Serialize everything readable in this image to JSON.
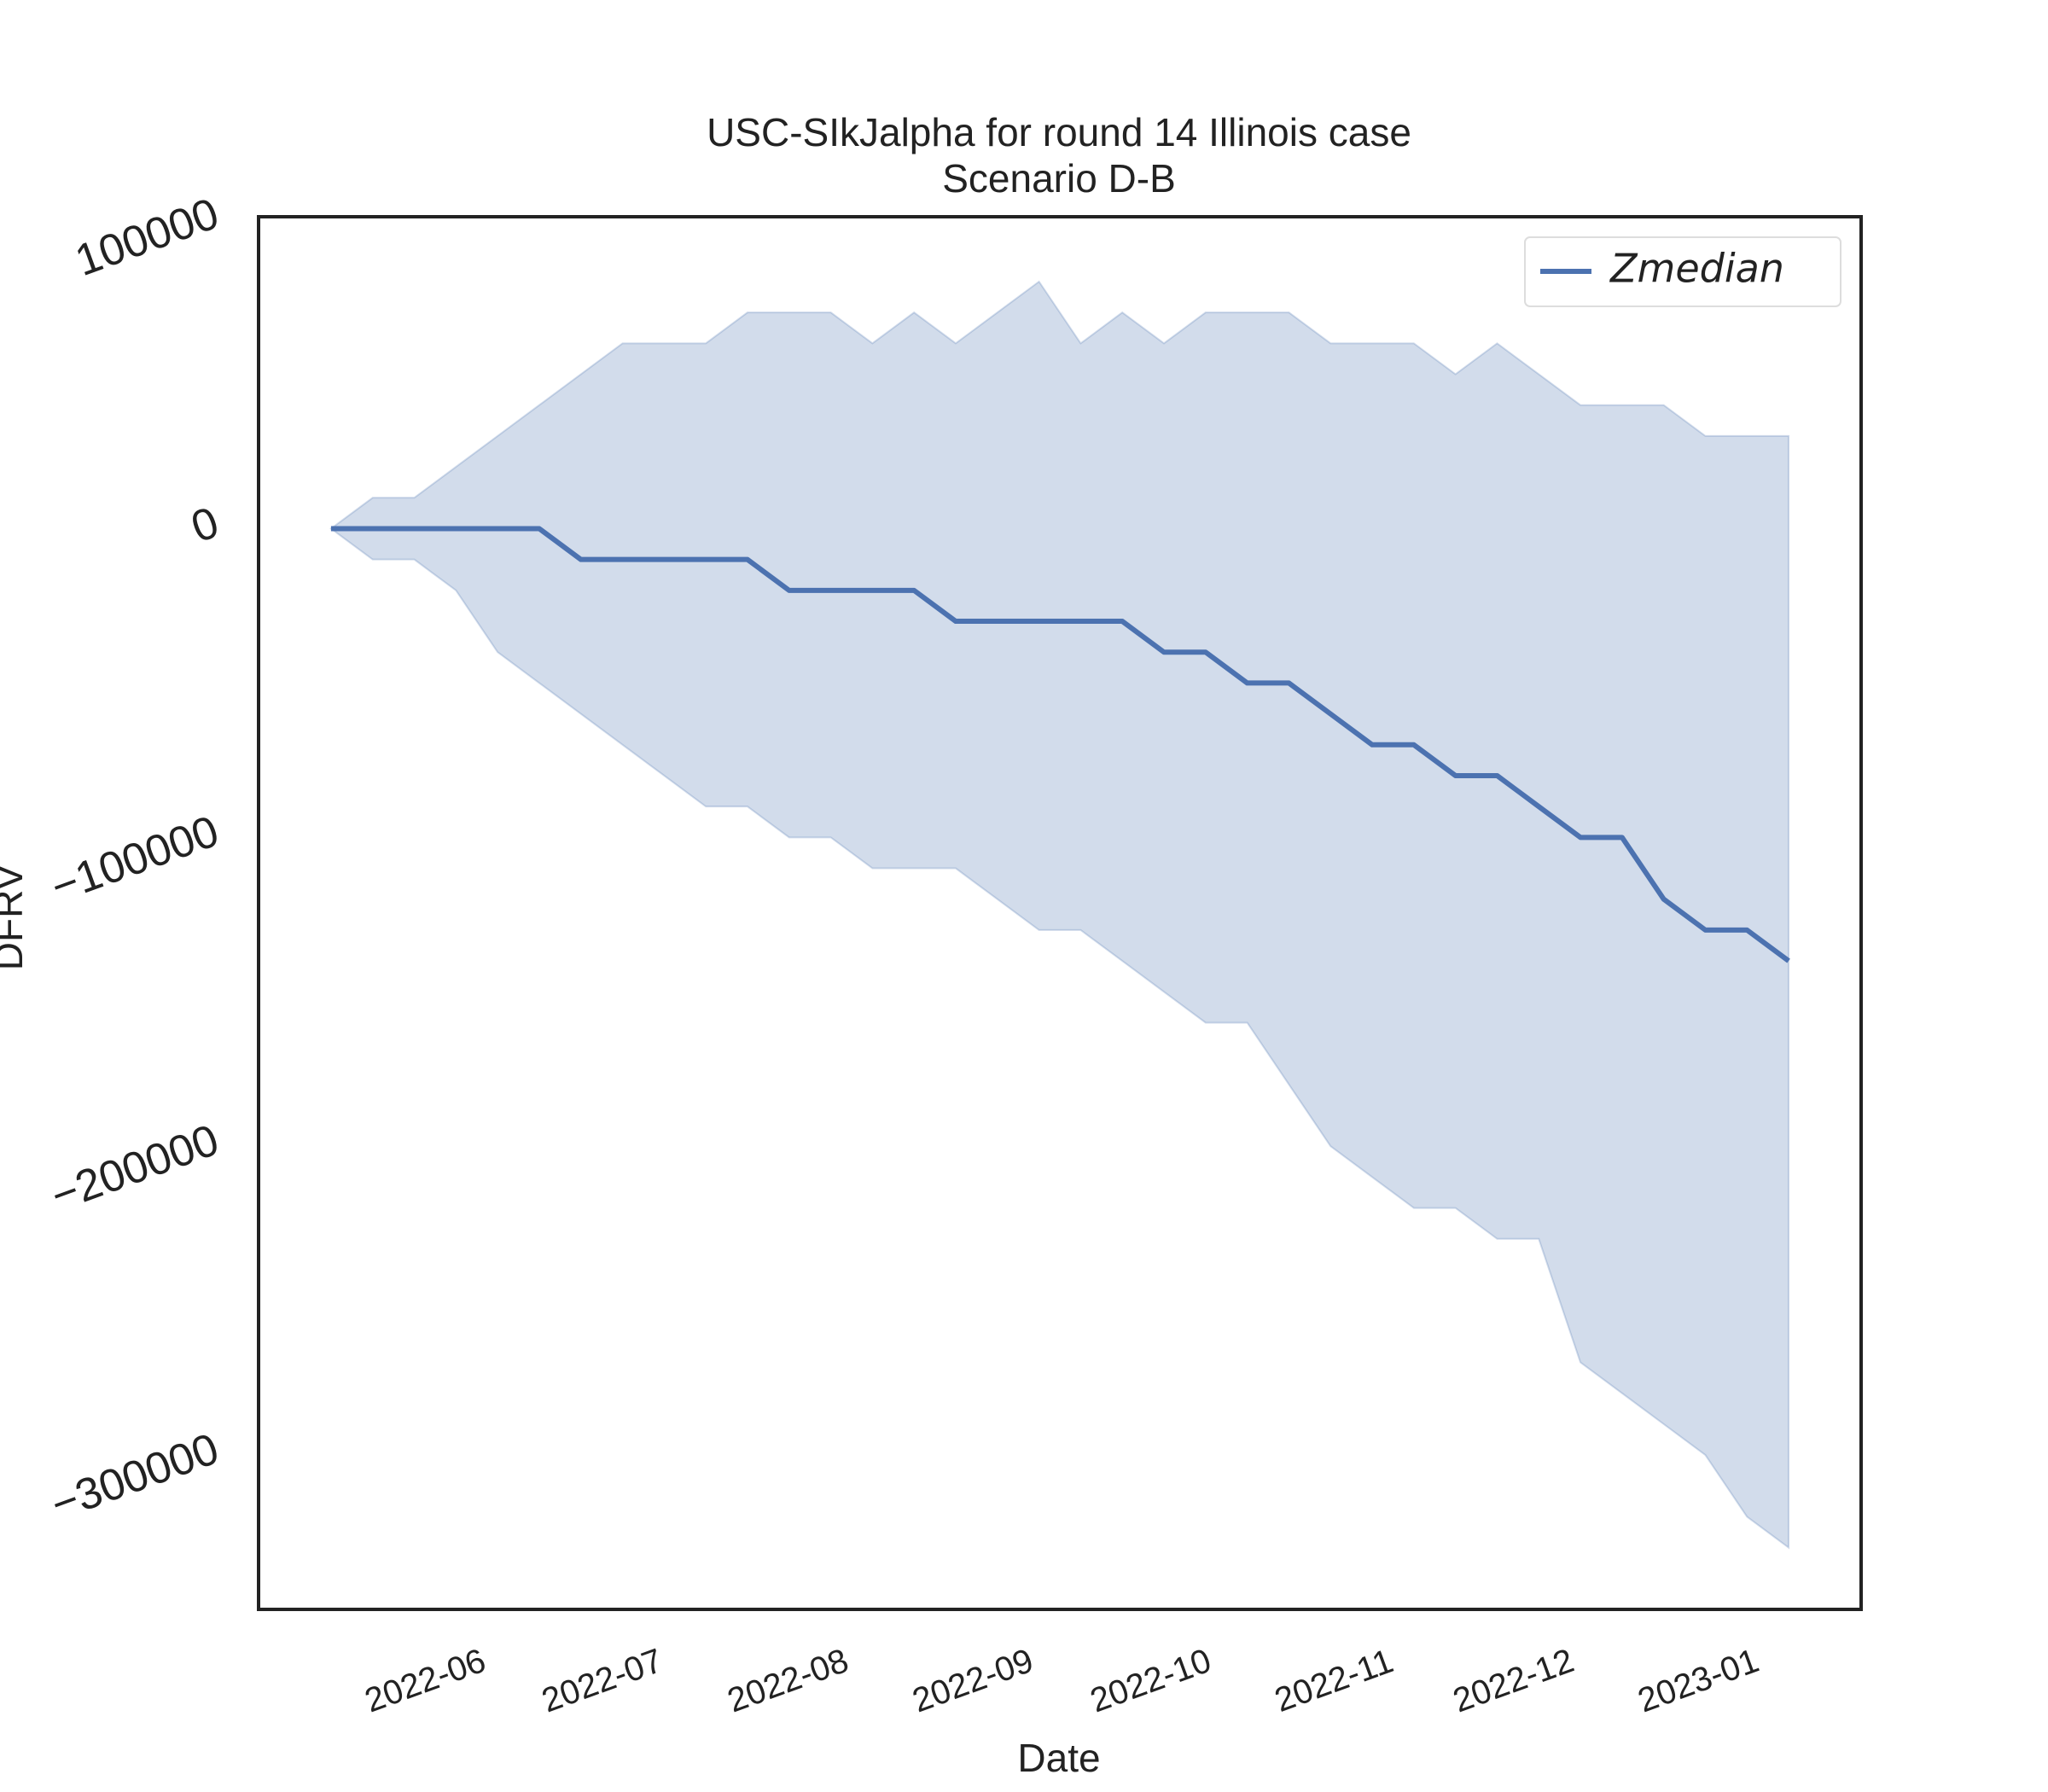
{
  "chart_data": {
    "type": "line",
    "title": "USC-SIkJalpha for round 14 Illinois case",
    "subtitle": "Scenario D-B",
    "x_label": "Date",
    "y_label": "DFRV",
    "x": [
      1,
      2,
      3,
      4,
      5,
      6,
      7,
      8,
      9,
      10,
      11,
      12,
      13,
      14,
      15,
      16,
      17,
      18,
      19,
      20,
      21,
      22,
      23,
      24,
      25,
      26,
      27,
      28,
      29,
      30,
      31,
      32,
      33,
      34,
      35,
      36
    ],
    "series": [
      {
        "name": "Zmedian",
        "color": "#4c72b0",
        "values": [
          0,
          0,
          0,
          0,
          0,
          0,
          -10000,
          -10000,
          -10000,
          -10000,
          -10000,
          -20000,
          -20000,
          -20000,
          -20000,
          -30000,
          -30000,
          -30000,
          -30000,
          -30000,
          -40000,
          -40000,
          -50000,
          -50000,
          -60000,
          -70000,
          -70000,
          -80000,
          -80000,
          -90000,
          -100000,
          -100000,
          -120000,
          -130000,
          -130000,
          -140000
        ]
      }
    ],
    "band": {
      "color": "#4c72b0",
      "upper": [
        0,
        10000,
        10000,
        20000,
        30000,
        40000,
        50000,
        60000,
        60000,
        60000,
        70000,
        70000,
        70000,
        60000,
        70000,
        60000,
        70000,
        80000,
        60000,
        70000,
        60000,
        70000,
        70000,
        70000,
        60000,
        60000,
        60000,
        50000,
        60000,
        50000,
        40000,
        40000,
        40000,
        30000,
        30000,
        30000
      ],
      "lower": [
        0,
        -10000,
        -10000,
        -20000,
        -40000,
        -50000,
        -60000,
        -70000,
        -80000,
        -90000,
        -90000,
        -100000,
        -100000,
        -110000,
        -110000,
        -110000,
        -120000,
        -130000,
        -130000,
        -140000,
        -150000,
        -160000,
        -160000,
        -180000,
        -200000,
        -210000,
        -220000,
        -220000,
        -230000,
        -230000,
        -270000,
        -280000,
        -290000,
        -300000,
        -320000,
        -330000
      ]
    },
    "xlim": [
      -0.74,
      37.74
    ],
    "xticks": [
      {
        "value": 3.28,
        "label": "2022-06"
      },
      {
        "value": 7.53,
        "label": "2022-07"
      },
      {
        "value": 11.99,
        "label": "2022-08"
      },
      {
        "value": 16.43,
        "label": "2022-09"
      },
      {
        "value": 20.7,
        "label": "2022-10"
      },
      {
        "value": 25.1,
        "label": "2022-11"
      },
      {
        "value": 29.41,
        "label": "2022-12"
      },
      {
        "value": 33.85,
        "label": "2023-01"
      }
    ],
    "ylim": [
      -350000,
      101000
    ],
    "yticks": [
      {
        "value": -300000,
        "label": "−300000"
      },
      {
        "value": -200000,
        "label": "−200000"
      },
      {
        "value": -100000,
        "label": "−100000"
      },
      0,
      100000
    ],
    "grid": false,
    "legend": "upper right"
  }
}
